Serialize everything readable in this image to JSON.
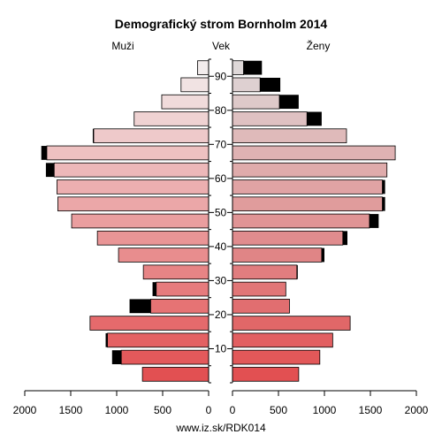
{
  "chart_data": {
    "type": "bar",
    "orientation": "horizontal-pyramid",
    "title": "Demografický strom Bornholm 2014",
    "left_label": "Muži",
    "center_label": "Vek",
    "right_label": "Ženy",
    "footer": "www.iz.sk/RDK014",
    "xlim": [
      0,
      2000
    ],
    "x_ticks": [
      0,
      500,
      1000,
      1500,
      2000
    ],
    "age_ticks": [
      10,
      20,
      30,
      40,
      50,
      60,
      70,
      80,
      90
    ],
    "groups": [
      "0-4",
      "5-9",
      "10-14",
      "15-19",
      "20-24",
      "25-29",
      "30-34",
      "35-39",
      "40-44",
      "45-49",
      "50-54",
      "55-59",
      "60-64",
      "65-69",
      "70-74",
      "75-79",
      "80-84",
      "85-89",
      "90+"
    ],
    "series": [
      {
        "name": "Muži",
        "values": [
          720,
          950,
          1100,
          1290,
          630,
          570,
          710,
          980,
          1210,
          1490,
          1640,
          1650,
          1680,
          1760,
          1250,
          810,
          510,
          300,
          120
        ]
      },
      {
        "name": "Muži-excess",
        "values": [
          0,
          100,
          20,
          0,
          230,
          40,
          0,
          0,
          0,
          0,
          0,
          0,
          90,
          60,
          10,
          0,
          0,
          0,
          0
        ]
      },
      {
        "name": "Ženy",
        "values": [
          720,
          950,
          1090,
          1280,
          620,
          580,
          700,
          970,
          1200,
          1490,
          1630,
          1630,
          1680,
          1770,
          1240,
          810,
          510,
          300,
          120
        ]
      },
      {
        "name": "Ženy-excess",
        "values": [
          0,
          0,
          0,
          0,
          0,
          0,
          10,
          30,
          50,
          100,
          30,
          30,
          0,
          0,
          0,
          160,
          210,
          220,
          200
        ]
      }
    ],
    "colors": {
      "excess": "#000000",
      "grid": "#000000"
    }
  }
}
